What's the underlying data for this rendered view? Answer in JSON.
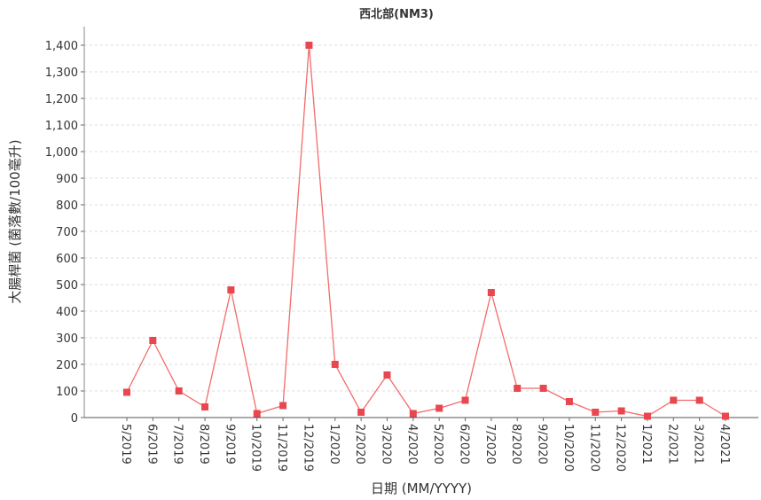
{
  "chart_data": {
    "type": "line",
    "title": "西北部(NM3)",
    "x_label": "日期 (MM/YYYY)",
    "y_label": "大腸桿菌 (菌落數/100毫升)",
    "categories": [
      "5/2019",
      "6/2019",
      "7/2019",
      "8/2019",
      "9/2019",
      "10/2019",
      "11/2019",
      "12/2019",
      "1/2020",
      "2/2020",
      "3/2020",
      "4/2020",
      "5/2020",
      "6/2020",
      "7/2020",
      "8/2020",
      "9/2020",
      "10/2020",
      "11/2020",
      "12/2020",
      "1/2021",
      "2/2021",
      "3/2021",
      "4/2021"
    ],
    "series": [
      {
        "color": "#f26b6b",
        "values": [
          95,
          290,
          100,
          40,
          480,
          15,
          45,
          1400,
          200,
          20,
          160,
          15,
          35,
          65,
          470,
          110,
          110,
          60,
          20,
          25,
          5,
          65,
          65,
          5
        ]
      }
    ],
    "ylim": [
      0,
      1400
    ],
    "yticks": [
      0,
      100,
      200,
      300,
      400,
      500,
      600,
      700,
      800,
      900,
      {
        "value": 1000,
        "label": "1,000"
      },
      {
        "value": 1100,
        "label": "1,100"
      },
      {
        "value": 1200,
        "label": "1,200"
      },
      {
        "value": 1300,
        "label": "1,300"
      },
      {
        "value": 1400,
        "label": "1,400"
      }
    ],
    "grid": true
  }
}
